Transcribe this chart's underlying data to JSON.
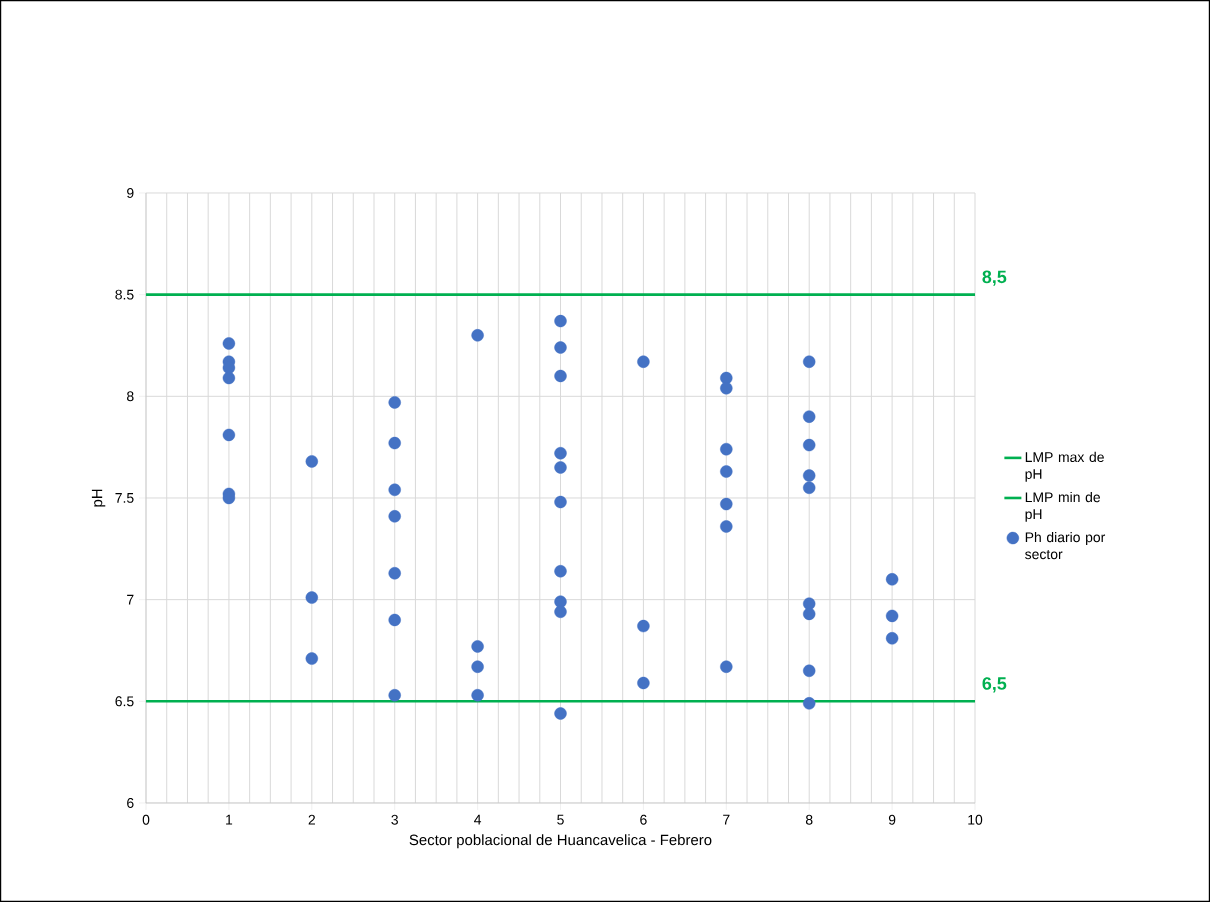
{
  "chart_data": {
    "type": "scatter",
    "xlabel": "Sector poblacional de Huancavelica - Febrero",
    "ylabel": "pH",
    "xlim": [
      0,
      10
    ],
    "xticks": [
      0,
      1,
      2,
      3,
      4,
      5,
      6,
      7,
      8,
      9,
      10
    ],
    "ylim": [
      6,
      9
    ],
    "yticks": [
      6,
      6.5,
      7,
      7.5,
      8,
      8.5,
      9
    ],
    "grid": true,
    "legend": "right",
    "series": [
      {
        "name": "LMP max de pH",
        "type": "line",
        "color": "#00b050",
        "marker": "none",
        "line_style": "solid",
        "x": [
          0,
          10
        ],
        "values": [
          8.5,
          8.5
        ]
      },
      {
        "name": "LMP min de pH",
        "type": "line",
        "color": "#00b050",
        "marker": "none",
        "line_style": "solid",
        "x": [
          0,
          10
        ],
        "values": [
          6.5,
          6.5
        ]
      },
      {
        "name": "Ph diario por sector",
        "color": "#4472c4",
        "marker": "circle",
        "x": [
          1,
          1,
          1,
          1,
          1,
          1,
          1,
          2,
          2,
          2,
          3,
          3,
          3,
          3,
          3,
          3,
          3,
          4,
          4,
          4,
          4,
          5,
          5,
          5,
          5,
          5,
          5,
          5,
          5,
          5,
          5,
          6,
          6,
          6,
          7,
          7,
          7,
          7,
          7,
          7,
          7,
          8,
          8,
          8,
          8,
          8,
          8,
          8,
          8,
          8,
          9,
          9,
          9
        ],
        "values": [
          8.26,
          8.17,
          8.14,
          8.09,
          7.81,
          7.52,
          7.5,
          7.68,
          7.01,
          6.71,
          7.97,
          7.77,
          7.54,
          7.41,
          7.13,
          6.9,
          6.53,
          8.3,
          6.77,
          6.67,
          6.53,
          8.37,
          8.24,
          8.1,
          7.72,
          7.65,
          7.48,
          7.14,
          6.99,
          6.94,
          6.44,
          8.17,
          6.87,
          6.59,
          8.09,
          8.04,
          7.74,
          7.63,
          7.47,
          7.36,
          6.67,
          8.17,
          7.9,
          7.76,
          7.61,
          7.55,
          6.98,
          6.93,
          6.65,
          6.49,
          7.1,
          6.92,
          6.81
        ]
      }
    ],
    "annotations": [
      {
        "text": "8,5",
        "x": 10,
        "y": 8.5
      },
      {
        "text": "6,5",
        "x": 10,
        "y": 6.5
      }
    ]
  }
}
